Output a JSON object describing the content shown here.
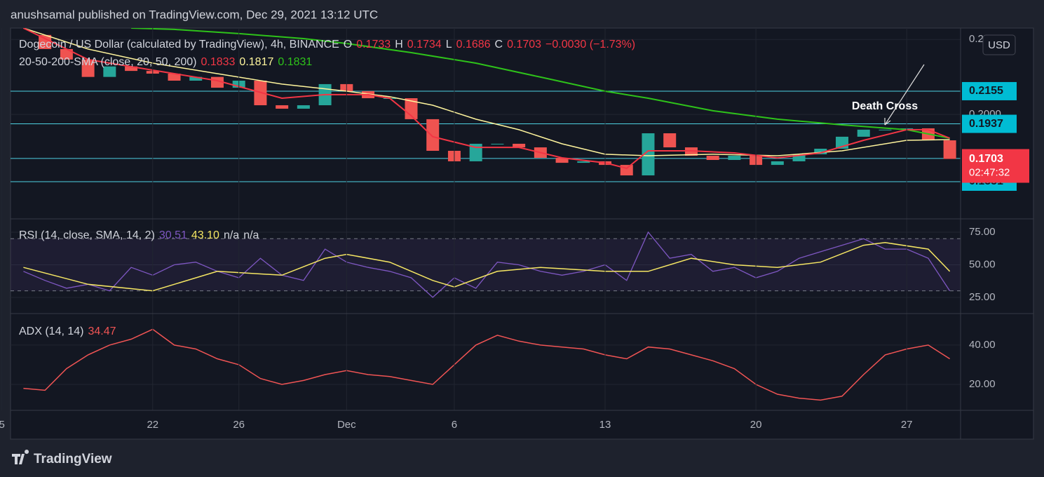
{
  "header": {
    "text": "anushsamal published on TradingView.com, Dec 29, 2021 13:12 UTC"
  },
  "currency": "USD",
  "footer": "TradingView",
  "xaxis": {
    "xlim": [
      -15.6,
      28.5
    ],
    "xticks": [
      {
        "value": -16,
        "label": "5"
      },
      {
        "value": -9,
        "label": "22"
      },
      {
        "value": -5,
        "label": "26"
      },
      {
        "value": 0,
        "label": "Dec"
      },
      {
        "value": 5,
        "label": "6"
      },
      {
        "value": 12,
        "label": "13"
      },
      {
        "value": 19,
        "label": "20"
      },
      {
        "value": 26,
        "label": "27"
      }
    ]
  },
  "main": {
    "legend": {
      "symbol": "Dogecoin / US Dollar (calculated by TradingView), 4h, BINANCE",
      "o": "O",
      "open": "0.1733",
      "h": "H",
      "high": "0.1734",
      "l": "L",
      "low": "0.1686",
      "c": "C",
      "close": "0.1703",
      "change": "−0.0030 (−1.73%)",
      "sma": "20-50-200-SMA (close, 20, 50, 200)",
      "sma20": "0.1833",
      "sma50": "0.1817",
      "sma200": "0.1831"
    },
    "ylim": [
      0.1303,
      0.2576
    ],
    "yticks": [
      {
        "value": 0.25,
        "label": "0.2500"
      },
      {
        "value": 0.2,
        "label": "0.2000"
      }
    ],
    "levels": [
      0.2155,
      0.1937,
      0.1706,
      0.1551
    ],
    "last": {
      "value": 0.1703,
      "countdown": "02:47:32"
    },
    "annotation": "Death Cross",
    "close": {
      "color": "#26a69a",
      "down_color": "#ef5350",
      "x": [
        -15,
        -14,
        -13,
        -12,
        -11,
        -10,
        -9,
        -8,
        -7,
        -6,
        -5,
        -4,
        -3,
        -2,
        -1,
        0,
        1,
        2,
        3,
        4,
        5,
        6,
        7,
        8,
        9,
        10,
        11,
        12,
        13,
        14,
        15,
        16,
        17,
        18,
        19,
        20,
        21,
        22,
        23,
        24,
        25,
        26,
        27,
        28
      ],
      "values": [
        0.253,
        0.2436,
        0.2366,
        0.225,
        0.232,
        0.229,
        0.2272,
        0.2225,
        0.225,
        0.2178,
        0.2225,
        0.2061,
        0.2038,
        0.2061,
        0.2202,
        0.2155,
        0.2108,
        0.2108,
        0.1968,
        0.1757,
        0.1687,
        0.1804,
        0.1804,
        0.178,
        0.171,
        0.1677,
        0.1687,
        0.1663,
        0.1593,
        0.1874,
        0.178,
        0.1724,
        0.1696,
        0.1724,
        0.1663,
        0.1687,
        0.1734,
        0.1771,
        0.1851,
        0.1898,
        0.1898,
        0.1907,
        0.1827,
        0.1703
      ]
    },
    "sma200": {
      "color": "#2ec21a",
      "x": [
        -10,
        -8,
        -5,
        -2,
        0,
        3,
        6,
        9,
        12,
        14,
        17,
        20,
        23,
        26,
        28
      ],
      "values": [
        0.2576,
        0.2567,
        0.2539,
        0.2506,
        0.2473,
        0.2412,
        0.2342,
        0.2249,
        0.2155,
        0.2108,
        0.2024,
        0.1968,
        0.193,
        0.1898,
        0.1841
      ]
    },
    "sma50": {
      "color": "#fff59d",
      "x": [
        -15,
        -12,
        -9,
        -6,
        -3,
        0,
        2,
        4,
        6,
        8,
        10,
        12,
        14,
        17,
        20,
        23,
        26,
        28
      ],
      "values": [
        0.2576,
        0.2436,
        0.2342,
        0.2272,
        0.2202,
        0.2155,
        0.2118,
        0.2061,
        0.1968,
        0.1898,
        0.1804,
        0.1734,
        0.1724,
        0.1734,
        0.1724,
        0.1757,
        0.1827,
        0.1832
      ]
    },
    "sma20": {
      "color": "#f23645",
      "x": [
        -15,
        -12,
        -9,
        -6,
        -3,
        -1,
        1,
        2,
        3,
        4,
        6,
        8,
        10,
        12,
        13,
        14,
        16,
        18,
        20,
        22,
        24,
        26,
        27,
        28
      ],
      "values": [
        0.2576,
        0.2366,
        0.2295,
        0.2225,
        0.2108,
        0.2132,
        0.2132,
        0.2108,
        0.1991,
        0.1851,
        0.178,
        0.178,
        0.171,
        0.1677,
        0.164,
        0.1757,
        0.1757,
        0.1743,
        0.171,
        0.1743,
        0.1827,
        0.1898,
        0.1898,
        0.1841
      ]
    }
  },
  "rsi": {
    "legend": {
      "title": "RSI (14, close, SMA, 14, 2)",
      "value": "30.51",
      "sma": "43.10",
      "na1": "n/a",
      "na2": "n/a"
    },
    "ylim": [
      12.6,
      85.2
    ],
    "yticks": [
      {
        "value": 75,
        "label": "75.00"
      },
      {
        "value": 50,
        "label": "50.00"
      },
      {
        "value": 25,
        "label": "25.00"
      }
    ],
    "bands": [
      70,
      30
    ],
    "line": {
      "color": "#7e57c2",
      "x": [
        -15,
        -14,
        -13,
        -12,
        -11,
        -10,
        -9,
        -8,
        -7,
        -6,
        -5,
        -4,
        -3,
        -2,
        -1,
        0,
        1,
        2,
        3,
        4,
        5,
        6,
        7,
        8,
        9,
        10,
        11,
        12,
        13,
        14,
        15,
        16,
        17,
        18,
        19,
        20,
        21,
        22,
        23,
        24,
        25,
        26,
        27,
        28
      ],
      "values": [
        45,
        38,
        32,
        35,
        30,
        48,
        42,
        50,
        52,
        45,
        40,
        55,
        42,
        38,
        62,
        52,
        48,
        45,
        40,
        25,
        40,
        32,
        52,
        50,
        45,
        42,
        45,
        50,
        38,
        75,
        55,
        58,
        45,
        48,
        40,
        45,
        55,
        60,
        65,
        70,
        62,
        62,
        55,
        30
      ]
    },
    "sma": {
      "color": "#f5e663",
      "x": [
        -15,
        -12,
        -9,
        -6,
        -3,
        -1,
        0,
        2,
        4,
        5,
        7,
        9,
        12,
        14,
        16,
        18,
        20,
        22,
        24,
        25,
        27,
        28
      ],
      "values": [
        48,
        35,
        30,
        45,
        42,
        55,
        58,
        52,
        38,
        33,
        45,
        48,
        45,
        45,
        55,
        50,
        48,
        52,
        65,
        67,
        62,
        45
      ]
    }
  },
  "adx": {
    "legend": {
      "title": "ADX (14, 14)",
      "value": "34.47"
    },
    "ylim": [
      6.8,
      56
    ],
    "yticks": [
      {
        "value": 40,
        "label": "40.00"
      },
      {
        "value": 20,
        "label": "20.00"
      }
    ],
    "line": {
      "color": "#f05454",
      "x": [
        -15,
        -14,
        -13,
        -12,
        -11,
        -10,
        -9,
        -8,
        -7,
        -6,
        -5,
        -4,
        -3,
        -2,
        -1,
        0,
        1,
        2,
        3,
        4,
        5,
        6,
        7,
        8,
        9,
        10,
        11,
        12,
        13,
        14,
        15,
        16,
        17,
        18,
        19,
        20,
        21,
        22,
        23,
        24,
        25,
        26,
        27,
        28
      ],
      "values": [
        18,
        17,
        28,
        35,
        40,
        43,
        48,
        40,
        38,
        33,
        30,
        23,
        20,
        22,
        25,
        27,
        25,
        24,
        22,
        20,
        30,
        40,
        45,
        42,
        40,
        39,
        38,
        35,
        33,
        39,
        38,
        35,
        32,
        28,
        20,
        15,
        13,
        12,
        14,
        25,
        35,
        38,
        40,
        33
      ]
    }
  }
}
